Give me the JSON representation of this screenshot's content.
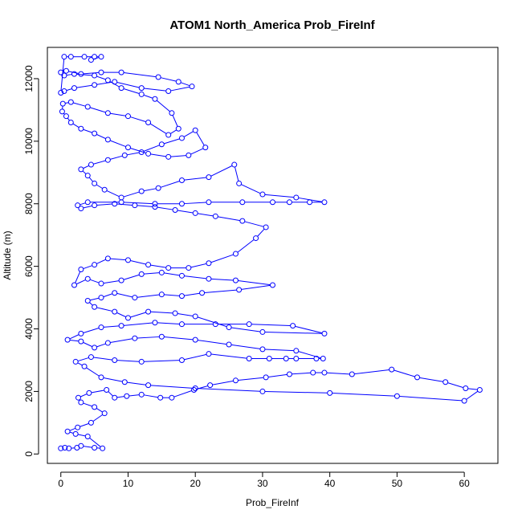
{
  "chart_data": {
    "type": "line",
    "title": "ATOM1 North_America Prob_FireInf",
    "xlabel": "Prob_FireInf",
    "ylabel": "Altitude (m)",
    "xlim": [
      -2,
      65
    ],
    "ylim": [
      -300,
      13000
    ],
    "x_ticks": [
      0,
      10,
      20,
      30,
      40,
      50,
      60
    ],
    "y_ticks": [
      0,
      2000,
      4000,
      6000,
      8000,
      10000,
      12000
    ],
    "series_color": "#0000ff",
    "marker": "open-circle",
    "series": [
      {
        "name": "",
        "points": [
          [
            0,
            180
          ],
          [
            0.6,
            200
          ],
          [
            1.2,
            180
          ],
          [
            2.4,
            200
          ],
          [
            3.0,
            260
          ],
          [
            5.0,
            200
          ],
          [
            6.2,
            180
          ],
          [
            4.0,
            560
          ],
          [
            2.2,
            640
          ],
          [
            1.0,
            720
          ],
          [
            2.5,
            850
          ],
          [
            4.5,
            1000
          ],
          [
            6.5,
            1300
          ],
          [
            5.0,
            1500
          ],
          [
            3.0,
            1650
          ],
          [
            2.6,
            1800
          ],
          [
            4.2,
            1950
          ],
          [
            6.8,
            2050
          ],
          [
            8.0,
            1800
          ],
          [
            9.8,
            1850
          ],
          [
            12.0,
            1900
          ],
          [
            14.8,
            1800
          ],
          [
            16.5,
            1800
          ],
          [
            19.8,
            2050
          ],
          [
            22.2,
            2200
          ],
          [
            26.0,
            2350
          ],
          [
            30.5,
            2450
          ],
          [
            34.0,
            2550
          ],
          [
            37.5,
            2600
          ],
          [
            39.2,
            2600
          ],
          [
            43.3,
            2550
          ],
          [
            49.2,
            2700
          ],
          [
            53.0,
            2450
          ],
          [
            57.2,
            2300
          ],
          [
            60.2,
            2100
          ],
          [
            62.3,
            2050
          ],
          [
            60.0,
            1700
          ],
          [
            50.0,
            1850
          ],
          [
            40.0,
            1950
          ],
          [
            30.0,
            2000
          ],
          [
            20.0,
            2100
          ],
          [
            13.0,
            2200
          ],
          [
            9.5,
            2300
          ],
          [
            6.0,
            2450
          ],
          [
            3.5,
            2800
          ],
          [
            2.2,
            2950
          ],
          [
            4.5,
            3100
          ],
          [
            8.0,
            3000
          ],
          [
            12.0,
            2950
          ],
          [
            18.0,
            3000
          ],
          [
            22.0,
            3200
          ],
          [
            28.0,
            3050
          ],
          [
            31.0,
            3050
          ],
          [
            33.5,
            3050
          ],
          [
            35.0,
            3050
          ],
          [
            38.0,
            3050
          ],
          [
            39.0,
            3050
          ],
          [
            35.0,
            3300
          ],
          [
            30.0,
            3350
          ],
          [
            25.0,
            3500
          ],
          [
            20.0,
            3650
          ],
          [
            15.0,
            3750
          ],
          [
            11.0,
            3700
          ],
          [
            7.0,
            3550
          ],
          [
            5.0,
            3400
          ],
          [
            3.0,
            3600
          ],
          [
            1.0,
            3650
          ],
          [
            3.0,
            3850
          ],
          [
            6.0,
            4050
          ],
          [
            9.0,
            4100
          ],
          [
            14.0,
            4200
          ],
          [
            18.0,
            4150
          ],
          [
            23.0,
            4150
          ],
          [
            28.0,
            4150
          ],
          [
            34.5,
            4100
          ],
          [
            39.2,
            3850
          ],
          [
            30.0,
            3900
          ],
          [
            25.0,
            4050
          ],
          [
            20.0,
            4400
          ],
          [
            17.0,
            4500
          ],
          [
            13.0,
            4550
          ],
          [
            10.0,
            4350
          ],
          [
            8.0,
            4550
          ],
          [
            5.0,
            4700
          ],
          [
            4.0,
            4900
          ],
          [
            6.0,
            5000
          ],
          [
            8.0,
            5150
          ],
          [
            11.0,
            5000
          ],
          [
            15.0,
            5100
          ],
          [
            18.0,
            5050
          ],
          [
            21.0,
            5150
          ],
          [
            26.5,
            5250
          ],
          [
            31.5,
            5400
          ],
          [
            26.0,
            5550
          ],
          [
            22.0,
            5600
          ],
          [
            18.0,
            5700
          ],
          [
            15.0,
            5800
          ],
          [
            12.0,
            5750
          ],
          [
            9.0,
            5550
          ],
          [
            6.0,
            5450
          ],
          [
            4.0,
            5600
          ],
          [
            2.0,
            5400
          ],
          [
            3.0,
            5900
          ],
          [
            5.0,
            6050
          ],
          [
            7.0,
            6250
          ],
          [
            10.0,
            6200
          ],
          [
            13.0,
            6050
          ],
          [
            16.0,
            5950
          ],
          [
            19.0,
            5950
          ],
          [
            22.0,
            6100
          ],
          [
            26.0,
            6400
          ],
          [
            29.0,
            6900
          ],
          [
            30.5,
            7250
          ],
          [
            27.0,
            7450
          ],
          [
            23.0,
            7600
          ],
          [
            20.0,
            7700
          ],
          [
            17.0,
            7800
          ],
          [
            14.0,
            7900
          ],
          [
            11.0,
            7950
          ],
          [
            8.0,
            8000
          ],
          [
            5.0,
            7950
          ],
          [
            3.0,
            7850
          ],
          [
            2.5,
            7950
          ],
          [
            4.0,
            8050
          ],
          [
            9.0,
            8050
          ],
          [
            14.0,
            8000
          ],
          [
            18.0,
            8000
          ],
          [
            22.0,
            8050
          ],
          [
            27.0,
            8050
          ],
          [
            31.5,
            8050
          ],
          [
            34.0,
            8050
          ],
          [
            37.0,
            8050
          ],
          [
            39.2,
            8050
          ],
          [
            35.0,
            8200
          ],
          [
            30.0,
            8300
          ],
          [
            26.5,
            8650
          ],
          [
            25.8,
            9250
          ],
          [
            22.0,
            8850
          ],
          [
            18.0,
            8750
          ],
          [
            14.5,
            8500
          ],
          [
            12.0,
            8400
          ],
          [
            9.0,
            8200
          ],
          [
            6.5,
            8450
          ],
          [
            5.0,
            8650
          ],
          [
            4.0,
            8900
          ],
          [
            3.0,
            9100
          ],
          [
            4.5,
            9250
          ],
          [
            7.0,
            9400
          ],
          [
            9.5,
            9550
          ],
          [
            12.0,
            9650
          ],
          [
            15.0,
            9900
          ],
          [
            18.0,
            10100
          ],
          [
            20.0,
            10350
          ],
          [
            21.5,
            9800
          ],
          [
            19.0,
            9550
          ],
          [
            16.0,
            9500
          ],
          [
            13.0,
            9600
          ],
          [
            10.0,
            9800
          ],
          [
            7.0,
            10050
          ],
          [
            5.0,
            10250
          ],
          [
            3.0,
            10400
          ],
          [
            1.5,
            10600
          ],
          [
            0.8,
            10800
          ],
          [
            0.2,
            10950
          ],
          [
            0.3,
            11200
          ],
          [
            1.5,
            11250
          ],
          [
            4.0,
            11100
          ],
          [
            7.0,
            10900
          ],
          [
            10.0,
            10800
          ],
          [
            13.0,
            10600
          ],
          [
            16.0,
            10200
          ],
          [
            17.5,
            10400
          ],
          [
            16.5,
            10900
          ],
          [
            14.0,
            11350
          ],
          [
            12.0,
            11500
          ],
          [
            9.0,
            11700
          ],
          [
            7.0,
            11950
          ],
          [
            5.0,
            12100
          ],
          [
            2.0,
            12150
          ],
          [
            0.5,
            12100
          ],
          [
            0.0,
            12200
          ],
          [
            0.8,
            12250
          ],
          [
            3.0,
            12150
          ],
          [
            6.0,
            12200
          ],
          [
            9.0,
            12200
          ],
          [
            14.5,
            12050
          ],
          [
            17.5,
            11900
          ],
          [
            19.5,
            11750
          ],
          [
            16.0,
            11600
          ],
          [
            12.0,
            11700
          ],
          [
            8.0,
            11900
          ],
          [
            5.0,
            11800
          ],
          [
            2.0,
            11700
          ],
          [
            0.5,
            11600
          ],
          [
            0.0,
            11550
          ],
          [
            0.5,
            12700
          ],
          [
            1.5,
            12700
          ],
          [
            3.5,
            12700
          ],
          [
            5.0,
            12700
          ],
          [
            6.0,
            12700
          ],
          [
            4.5,
            12600
          ]
        ]
      }
    ]
  }
}
